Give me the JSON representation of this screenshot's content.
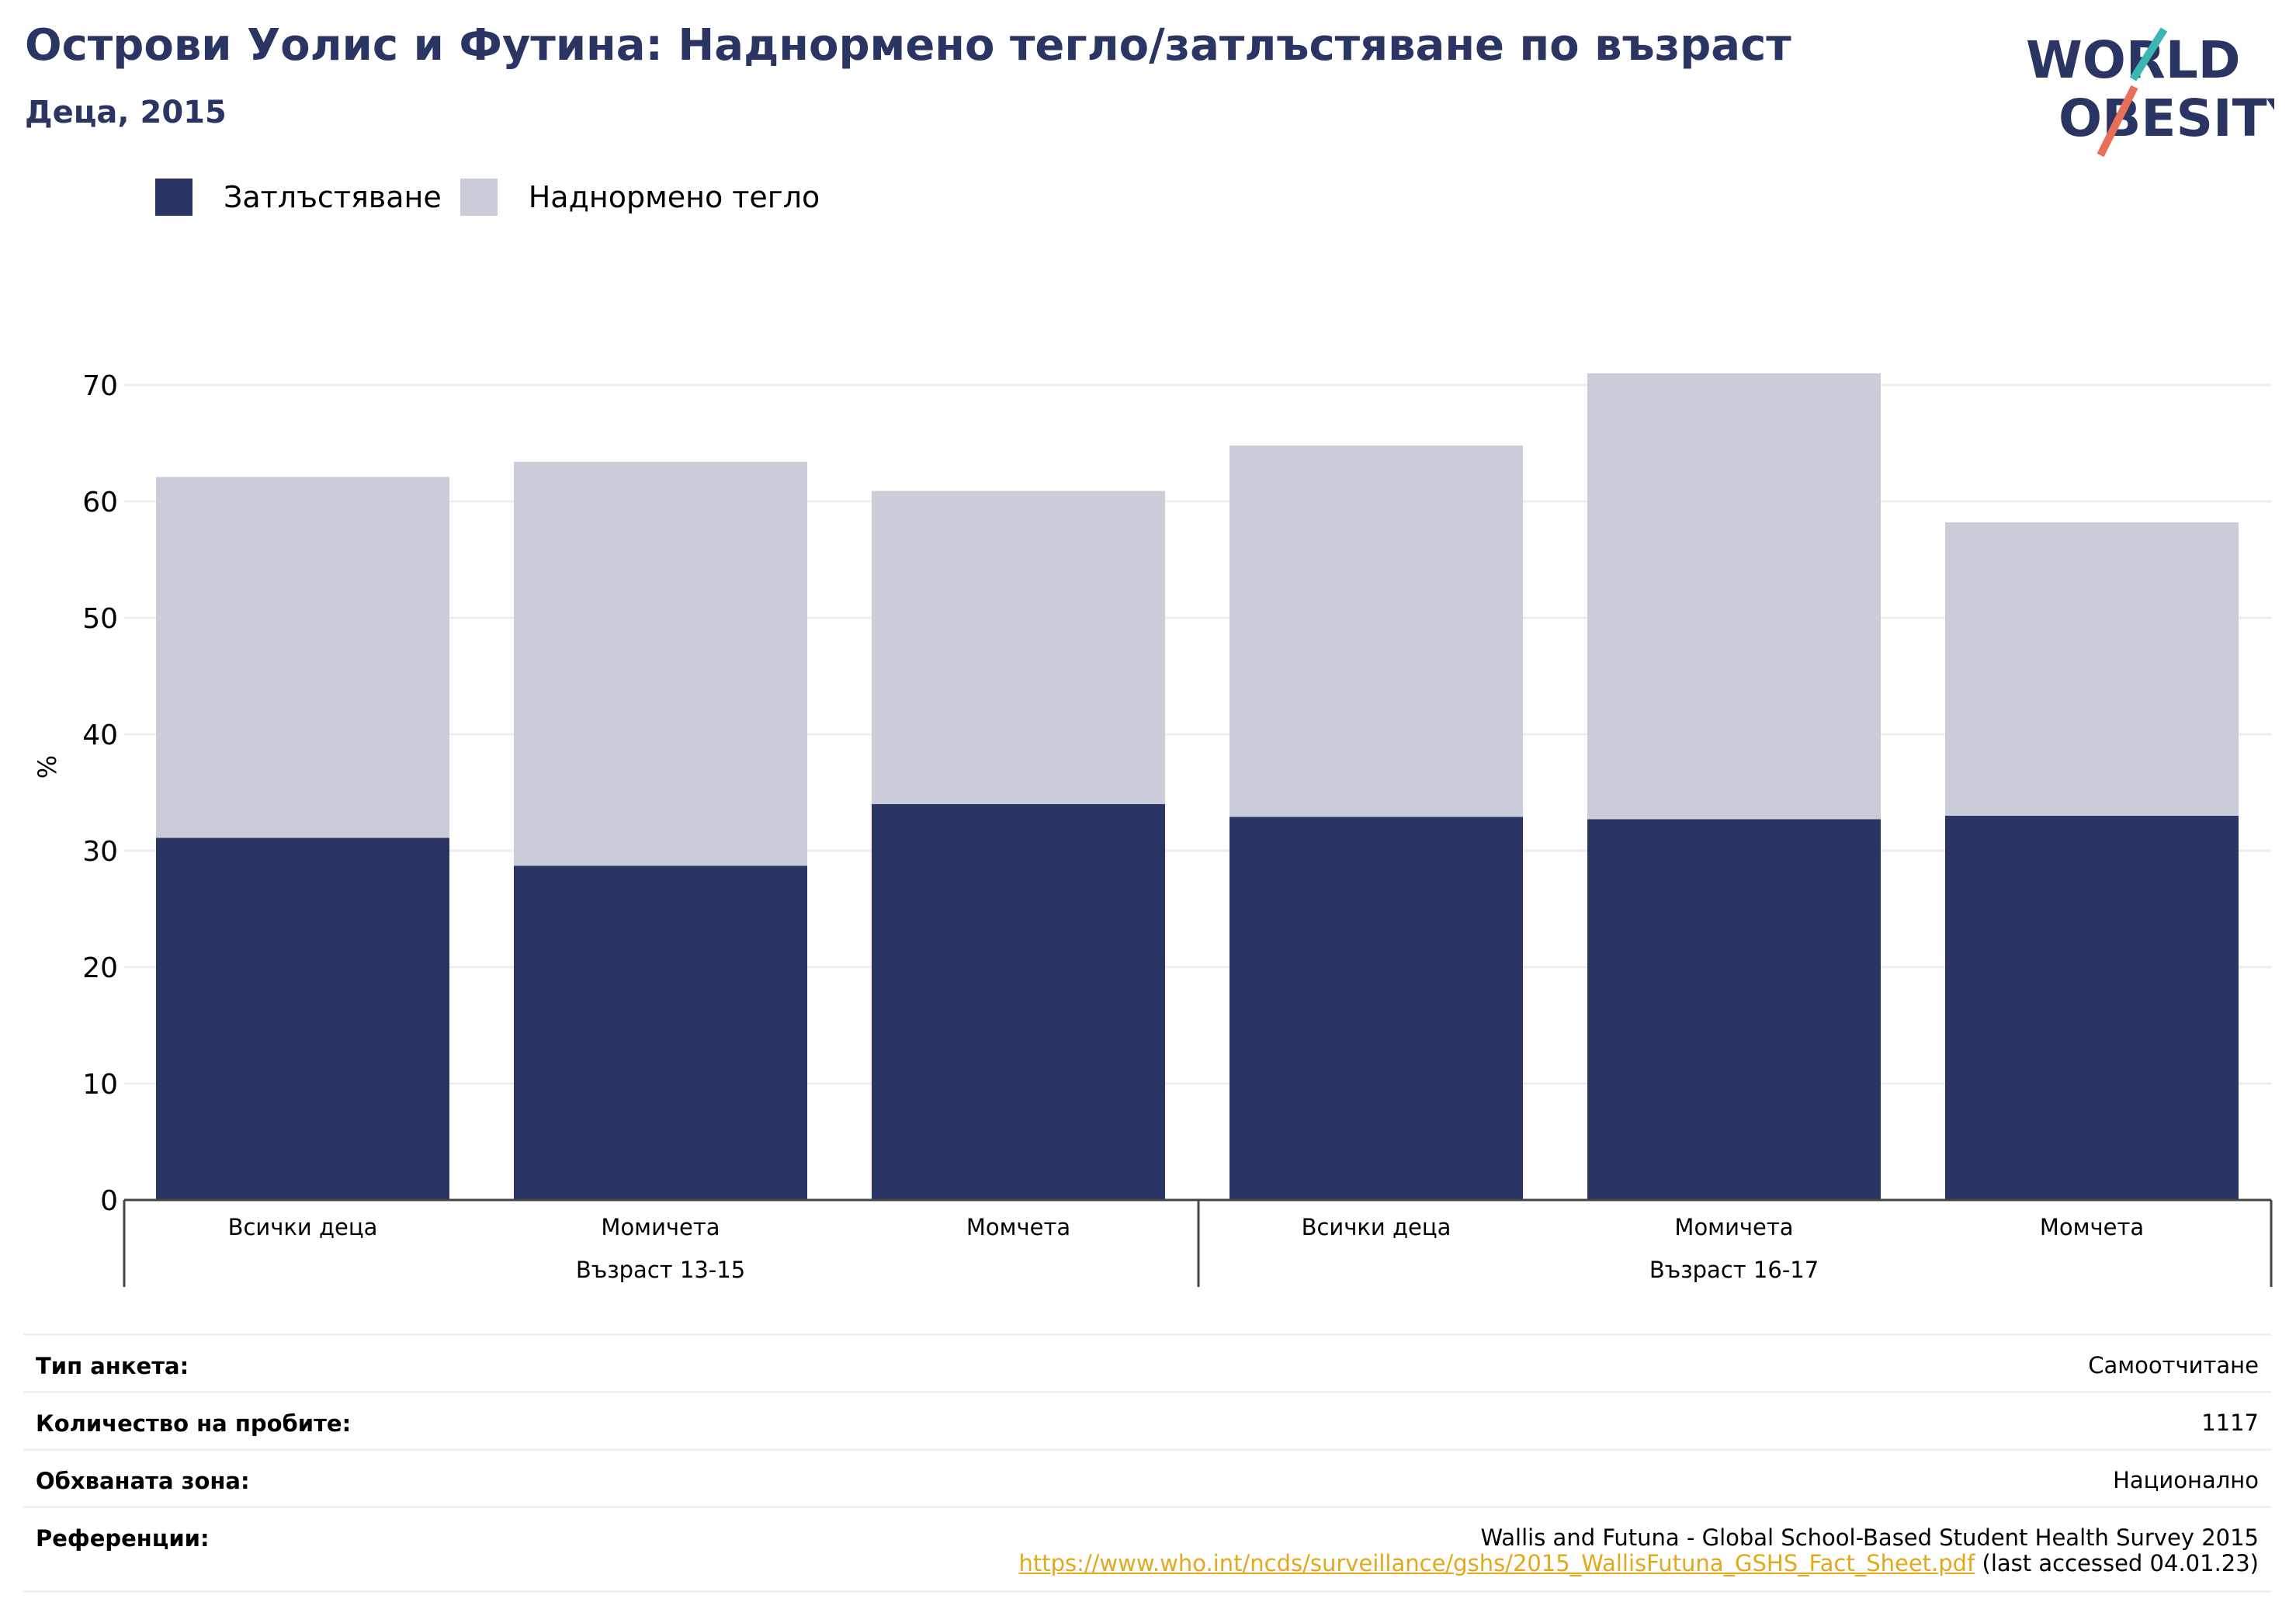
{
  "header": {
    "title": "Острови Уолис и Футина: Наднормено тегло/затлъстяване по възраст",
    "subtitle": "Деца, 2015"
  },
  "logo": {
    "line1": "WORLD",
    "line2": "OBESITY"
  },
  "colors": {
    "obesity": "#2a3563",
    "overweight": "#cacdd9",
    "accent_teal": "#3bb7b2",
    "accent_orange": "#e8705a"
  },
  "legend": [
    {
      "label": "Затлъстяване",
      "color": "#2a3563"
    },
    {
      "label": "Наднормено тегло",
      "color": "#cacdd9"
    }
  ],
  "chart_data": {
    "type": "bar",
    "stacked": true,
    "categories": [
      "Всички деца",
      "Момичета",
      "Момчета",
      "Всички деца",
      "Момичета",
      "Момчета"
    ],
    "groups": [
      {
        "label": "Възраст 13-15",
        "size": 3
      },
      {
        "label": "Възраст 16-17",
        "size": 3
      }
    ],
    "series": [
      {
        "name": "Затлъстяване",
        "values": [
          31.1,
          28.7,
          34.0,
          32.9,
          32.7,
          33.0
        ]
      },
      {
        "name": "Наднормено тегло",
        "values": [
          31.0,
          34.7,
          26.9,
          31.9,
          38.3,
          25.2
        ]
      }
    ],
    "ylabel": "%",
    "yticks": [
      0,
      10,
      20,
      30,
      40,
      50,
      60,
      70
    ],
    "ylim": [
      0,
      70
    ],
    "grid": true
  },
  "info": {
    "survey_type": {
      "key": "Тип анкета:",
      "value": "Самоотчитане"
    },
    "sample_size": {
      "key": "Количество на пробите:",
      "value": "1117"
    },
    "area": {
      "key": "Обхваната зона:",
      "value": "Национално"
    },
    "references": {
      "key": "Референции:",
      "line1": "Wallis and Futuna - Global School-Based Student Health Survey 2015",
      "link": "https://www.who.int/ncds/surveillance/gshs/2015_WallisFutuna_GSHS_Fact_Sheet.pdf",
      "accessed": " (last accessed 04.01.23)"
    }
  }
}
